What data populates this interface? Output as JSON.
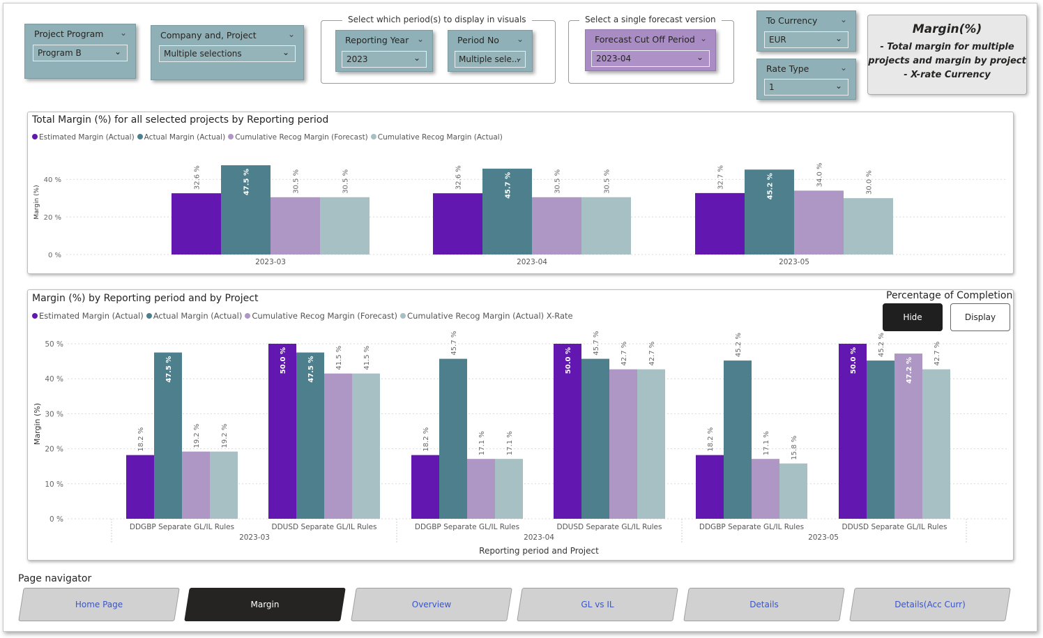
{
  "slicers": {
    "project_program": {
      "title": "Project Program",
      "value": "Program B"
    },
    "company_project": {
      "title": "Company and, Project",
      "value": "Multiple selections"
    },
    "period_group_label": "Select which period(s) to display in visuals",
    "reporting_year": {
      "title": "Reporting Year",
      "value": "2023"
    },
    "period_no": {
      "title": "Period No",
      "value": "Multiple sele..."
    },
    "forecast_group_label": "Select a single forecast version",
    "forecast_cutoff": {
      "title": "Forecast Cut Off Period",
      "value": "2023-04"
    },
    "to_currency": {
      "title": "To Currency",
      "value": "EUR"
    },
    "rate_type": {
      "title": "Rate Type",
      "value": "1"
    }
  },
  "info": {
    "heading": "Margin(%)",
    "line1": "- Total margin for multiple",
    "line2": "projects and margin by project",
    "line3": "- X-rate Currency"
  },
  "colors": {
    "estimated": "#6218b0",
    "actual": "#4d808c",
    "forecast": "#af97c5",
    "recog_actual": "#a7c0c4"
  },
  "chart1": {
    "title": "Total Margin (%) for all selected projects by Reporting period",
    "legend": [
      "Estimated Margin (Actual)",
      "Actual Margin (Actual)",
      "Cumulative Recog Margin (Forecast)",
      "Cumulative Recog Margin (Actual)"
    ],
    "ylabel": "Margin (%)",
    "y_ticks": [
      "0 %",
      "20 %",
      "40 %"
    ]
  },
  "chart2": {
    "title": "Margin (%) by Reporting period and by Project",
    "legend": [
      "Estimated Margin (Actual)",
      "Actual Margin (Actual)",
      "Cumulative Recog Margin (Forecast)",
      "Cumulative Recog Margin (Actual) X-Rate"
    ],
    "ylabel": "Margin (%)",
    "xlabel": "Reporting period and Project",
    "y_ticks": [
      "0 %",
      "10 %",
      "20 %",
      "30 %",
      "40 %",
      "50 %"
    ]
  },
  "completion": {
    "title": "Percentage of Completion",
    "hide_label": "Hide",
    "display_label": "Display"
  },
  "navigator": {
    "title": "Page navigator",
    "pages": [
      "Home Page",
      "Margin",
      "Overview",
      "GL vs IL",
      "Details",
      "Details(Acc Curr)"
    ],
    "active": "Margin"
  },
  "chart_data": [
    {
      "type": "bar",
      "title": "Total Margin (%) for all selected projects by Reporting period",
      "ylabel": "Margin (%)",
      "ylim": [
        0,
        47.5
      ],
      "categories": [
        "2023-03",
        "2023-04",
        "2023-05"
      ],
      "series": [
        {
          "name": "Estimated Margin (Actual)",
          "values": [
            32.6,
            32.6,
            32.7
          ],
          "labels": [
            "32.6 %",
            "32.6 %",
            "32.7 %"
          ]
        },
        {
          "name": "Actual Margin (Actual)",
          "values": [
            47.5,
            45.7,
            45.2
          ],
          "labels": [
            "47.5 %",
            "45.7 %",
            "45.2 %"
          ]
        },
        {
          "name": "Cumulative Recog Margin (Forecast)",
          "values": [
            30.5,
            30.5,
            34.0
          ],
          "labels": [
            "30.5 %",
            "30.5 %",
            "34.0 %"
          ]
        },
        {
          "name": "Cumulative Recog Margin (Actual)",
          "values": [
            30.5,
            30.5,
            30.0
          ],
          "labels": [
            "30.5 %",
            "30.5 %",
            "30.0 %"
          ]
        }
      ],
      "legend": "top-left",
      "grid": true
    },
    {
      "type": "bar",
      "title": "Margin (%) by Reporting period and by Project",
      "xlabel": "Reporting period and Project",
      "ylabel": "Margin (%)",
      "ylim": [
        0,
        50
      ],
      "categories": [
        "DDGBP Separate GL/IL Rules",
        "DDUSD Separate GL/IL Rules",
        "DDGBP Separate GL/IL Rules",
        "DDUSD Separate GL/IL Rules",
        "DDGBP Separate GL/IL Rules",
        "DDUSD Separate GL/IL Rules"
      ],
      "groups": [
        "2023-03",
        "2023-04",
        "2023-05"
      ],
      "series": [
        {
          "name": "Estimated Margin (Actual)",
          "values": [
            18.2,
            50.0,
            18.2,
            50.0,
            18.2,
            50.0
          ],
          "labels": [
            "18.2 %",
            "50.0 %",
            "18.2 %",
            "50.0 %",
            "18.2 %",
            "50.0 %"
          ]
        },
        {
          "name": "Actual Margin (Actual)",
          "values": [
            47.5,
            47.5,
            45.7,
            45.7,
            45.2,
            45.2
          ],
          "labels": [
            "47.5 %",
            "47.5 %",
            "45.7 %",
            "45.7 %",
            "45.2 %",
            "45.2 %"
          ]
        },
        {
          "name": "Cumulative Recog Margin (Forecast)",
          "values": [
            19.2,
            41.5,
            17.1,
            42.7,
            17.1,
            47.2
          ],
          "labels": [
            "19.2 %",
            "41.5 %",
            "17.1 %",
            "42.7 %",
            "17.1 %",
            "47.2 %"
          ]
        },
        {
          "name": "Cumulative Recog Margin (Actual) X-Rate",
          "values": [
            19.2,
            41.5,
            17.1,
            42.7,
            15.8,
            42.7
          ],
          "labels": [
            "19.2 %",
            "41.5 %",
            "17.1 %",
            "42.7 %",
            "15.8 %",
            "42.7 %"
          ]
        }
      ],
      "legend": "top-left",
      "grid": true
    }
  ]
}
